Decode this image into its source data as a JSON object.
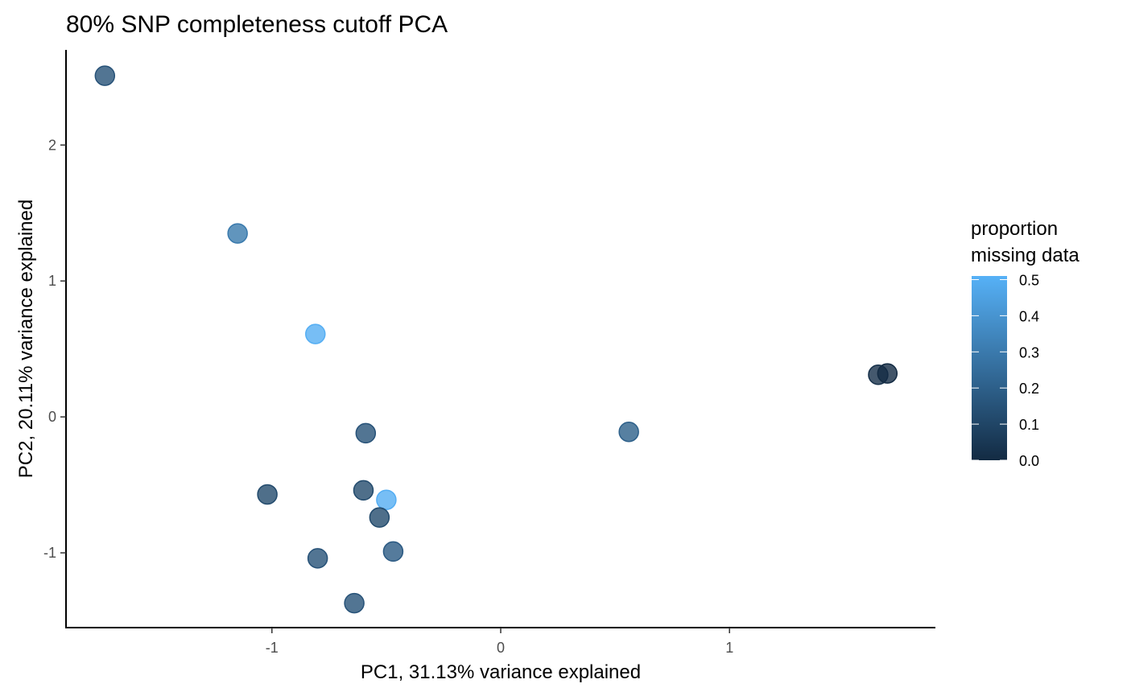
{
  "chart_data": {
    "type": "scatter",
    "title": "80% SNP completeness cutoff PCA",
    "xlabel": "PC1, 31.13% variance explained",
    "ylabel": "PC2, 20.11% variance explained",
    "xlim": [
      -1.9,
      1.9
    ],
    "ylim": [
      -1.55,
      2.7
    ],
    "x_ticks": [
      -1,
      0,
      1
    ],
    "x_tick_labels": [
      "-1",
      "0",
      "1"
    ],
    "y_ticks": [
      -1,
      0,
      1,
      2
    ],
    "y_tick_labels": [
      "-1",
      "0",
      "1",
      "2"
    ],
    "grid": false,
    "legend": {
      "title_lines": [
        "proportion",
        "missing data"
      ],
      "placement": "right",
      "range": [
        0,
        0.51
      ],
      "ticks": [
        0,
        0.1,
        0.2,
        0.3,
        0.4,
        0.5
      ],
      "tick_labels": [
        "0.0",
        "0.1",
        "0.2",
        "0.3",
        "0.4",
        "0.5"
      ],
      "low_color": "#132B43",
      "high_color": "#56B1F7"
    },
    "points": [
      {
        "x": -1.73,
        "y": 2.51,
        "missing": 0.15
      },
      {
        "x": -1.15,
        "y": 1.35,
        "missing": 0.3
      },
      {
        "x": -0.81,
        "y": 0.61,
        "missing": 0.5
      },
      {
        "x": -0.59,
        "y": -0.12,
        "missing": 0.15
      },
      {
        "x": 0.56,
        "y": -0.11,
        "missing": 0.2
      },
      {
        "x": 1.65,
        "y": 0.31,
        "missing": 0.02
      },
      {
        "x": 1.69,
        "y": 0.32,
        "missing": 0.0
      },
      {
        "x": -1.02,
        "y": -0.57,
        "missing": 0.12
      },
      {
        "x": -0.6,
        "y": -0.54,
        "missing": 0.12
      },
      {
        "x": -0.5,
        "y": -0.61,
        "missing": 0.5
      },
      {
        "x": -0.53,
        "y": -0.74,
        "missing": 0.12
      },
      {
        "x": -0.47,
        "y": -0.99,
        "missing": 0.18
      },
      {
        "x": -0.8,
        "y": -1.04,
        "missing": 0.15
      },
      {
        "x": -0.64,
        "y": -1.37,
        "missing": 0.15
      }
    ]
  }
}
